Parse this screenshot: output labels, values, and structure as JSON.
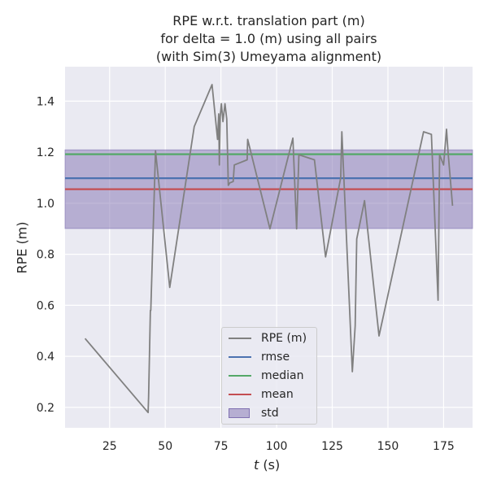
{
  "chart_data": {
    "type": "line",
    "title_lines": [
      "RPE w.r.t. translation part (m)",
      "for delta = 1.0 (m) using all pairs",
      "(with Sim(3) Umeyama alignment)"
    ],
    "xlabel_italic": "t",
    "xlabel_rest": " (s)",
    "ylabel": "RPE (m)",
    "xlim": [
      5,
      188
    ],
    "ylim": [
      0.12,
      1.535
    ],
    "xticks": [
      25,
      50,
      75,
      100,
      125,
      150,
      175
    ],
    "yticks": [
      0.2,
      0.4,
      0.6,
      0.8,
      1.0,
      1.2,
      1.4
    ],
    "xtick_labels": [
      "25",
      "50",
      "75",
      "100",
      "125",
      "150",
      "175"
    ],
    "ytick_labels": [
      "0.2",
      "0.4",
      "0.6",
      "0.8",
      "1.0",
      "1.2",
      "1.4"
    ],
    "grid": true,
    "legend_position": "lower-center",
    "series": [
      {
        "name": "RPE (m)",
        "color": "#808080",
        "x": [
          14,
          42.3,
          42.5,
          43.3,
          43.5,
          44,
          45.6,
          52,
          63,
          71,
          73.5,
          74,
          74.3,
          74.7,
          75.2,
          75.9,
          76.8,
          77.6,
          78.3,
          79,
          80.5,
          81,
          86.8,
          87,
          97,
          107.3,
          109,
          110,
          117,
          122,
          128.8,
          129.3,
          134,
          135.3,
          136,
          139.5,
          146,
          166,
          169.5,
          172.5,
          173.2,
          175,
          176.3,
          177,
          179
        ],
        "values": [
          0.47,
          0.18,
          0.24,
          0.58,
          0.58,
          0.73,
          1.205,
          0.67,
          1.3,
          1.465,
          1.25,
          1.35,
          1.15,
          1.34,
          1.39,
          1.32,
          1.39,
          1.33,
          1.07,
          1.08,
          1.085,
          1.15,
          1.17,
          1.25,
          0.9,
          1.255,
          0.9,
          1.19,
          1.17,
          0.79,
          1.1,
          1.28,
          0.34,
          0.52,
          0.86,
          1.01,
          0.48,
          1.28,
          1.27,
          0.62,
          1.19,
          1.15,
          1.29,
          1.2,
          0.99
        ]
      }
    ],
    "stats": {
      "rmse": {
        "label": "rmse",
        "value": 1.098,
        "color": "#4c72b0"
      },
      "median": {
        "label": "median",
        "value": 1.192,
        "color": "#55a868"
      },
      "mean": {
        "label": "mean",
        "value": 1.055,
        "color": "#c44e52"
      },
      "std": {
        "label": "std",
        "low": 0.901,
        "high": 1.209,
        "color": "#8172b2"
      }
    }
  }
}
